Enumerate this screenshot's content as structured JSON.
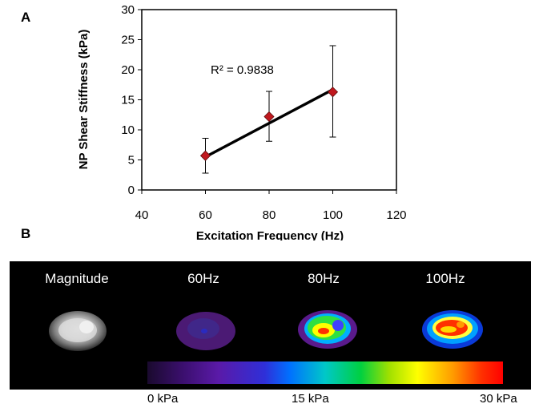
{
  "panels": {
    "a": "A",
    "b": "B"
  },
  "chart_data": {
    "type": "scatter",
    "xlabel": "Excitation Frequency (Hz)",
    "ylabel": "NP Shear Stiffness (kPa)",
    "xlim": [
      40,
      120
    ],
    "ylim": [
      0,
      30
    ],
    "xticks": [
      40,
      60,
      80,
      100,
      120
    ],
    "yticks": [
      0,
      5,
      10,
      15,
      20,
      25,
      30
    ],
    "points": [
      {
        "x": 60,
        "y": 5.7,
        "err_low": 2.8,
        "err_high": 8.6
      },
      {
        "x": 80,
        "y": 12.2,
        "err_low": 8.1,
        "err_high": 16.4
      },
      {
        "x": 100,
        "y": 16.3,
        "err_low": 8.8,
        "err_high": 24.0
      }
    ],
    "trendline": {
      "x": [
        60,
        100
      ],
      "y": [
        5.5,
        16.7
      ]
    },
    "annotation": "R² = 0.9838",
    "marker_color": "#c0181e",
    "line_color": "#000000",
    "grid": false
  },
  "mri": {
    "labels": [
      "Magnitude",
      "60Hz",
      "80Hz",
      "100Hz"
    ],
    "colorbar": {
      "min_label": "0 kPa",
      "mid_label": "15 kPa",
      "max_label": "30 kPa"
    }
  }
}
